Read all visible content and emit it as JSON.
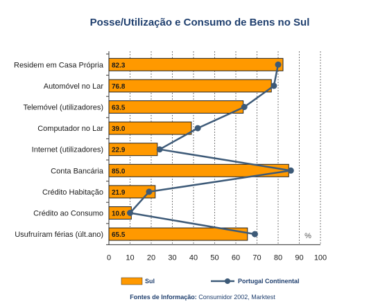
{
  "chart_data": {
    "type": "bar",
    "orientation": "horizontal",
    "title": "Posse/Utilização e Consumo de Bens no Sul",
    "categories": [
      "Residem em Casa Própria",
      "Automóvel no Lar",
      "Telemóvel (utilizadores)",
      "Computador no Lar",
      "Internet (utilizadores)",
      "Conta Bancária",
      "Crédito Habitação",
      "Crédito ao Consumo",
      "Usufruíram férias (últ.ano)"
    ],
    "series": [
      {
        "name": "Sul",
        "kind": "bar",
        "color": "#ff9900",
        "values": [
          82.3,
          76.8,
          63.5,
          39.0,
          22.9,
          85.0,
          21.9,
          10.6,
          65.5
        ],
        "labels": [
          "82.3",
          "76.8",
          "63.5",
          "39.0",
          "22.9",
          "85.0",
          "21.9",
          "10.6",
          "65.5"
        ]
      },
      {
        "name": "Portugal Continental",
        "kind": "line",
        "color": "#3d5a78",
        "values": [
          80,
          78,
          64,
          42,
          24,
          86,
          19,
          10,
          69
        ]
      }
    ],
    "xlim": [
      0,
      100
    ],
    "xticks": [
      "0",
      "10",
      "20",
      "30",
      "40",
      "50",
      "60",
      "70",
      "80",
      "90",
      "100"
    ],
    "unit_label": "%",
    "grid": "vertical dotted",
    "legend_position": "bottom"
  },
  "source": {
    "prefix": "Fontes de Informação:",
    "text": " Consumidor 2002, Marktest"
  }
}
